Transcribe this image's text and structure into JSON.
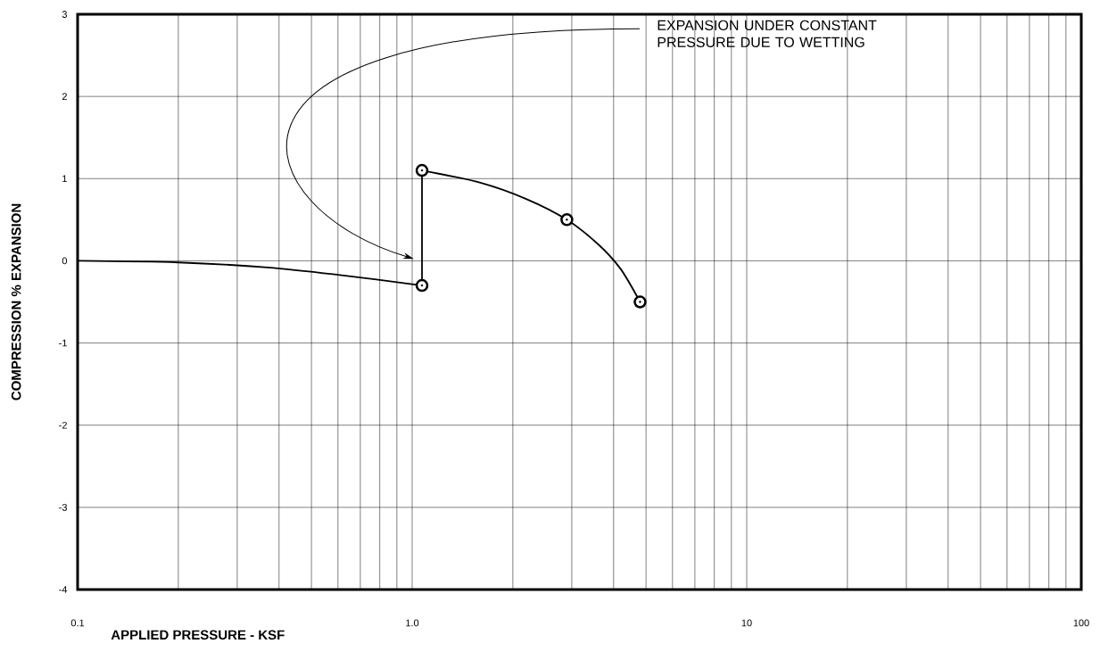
{
  "chart_data": {
    "type": "line",
    "xlabel": "APPLIED PRESSURE - KSF",
    "ylabel": "COMPRESSION % EXPANSION",
    "log": "x",
    "grid": true,
    "xlim": [
      0.1,
      100
    ],
    "ylim": [
      -4,
      3
    ],
    "xticks": [
      {
        "value": 0.1,
        "label": "0.1"
      },
      {
        "value": 1,
        "label": "1.0"
      },
      10,
      100
    ],
    "yticks": [
      -4,
      -3,
      -2,
      -1,
      0,
      1,
      2,
      3
    ],
    "series": [
      {
        "color": "#000000",
        "x": [
          0.1,
          0.2,
          0.37,
          0.6,
          1.07
        ],
        "values": [
          0,
          -0.02,
          -0.08,
          -0.17,
          -0.3
        ]
      },
      {
        "color": "#000000",
        "x": [
          1.07,
          1.07
        ],
        "values": [
          -0.3,
          1.1
        ]
      },
      {
        "color": "#000000",
        "x": [
          1.07,
          1.6,
          2.2,
          2.9,
          3.6,
          4.2,
          4.8
        ],
        "values": [
          1.1,
          0.95,
          0.75,
          0.5,
          0.2,
          -0.1,
          -0.5
        ]
      },
      {
        "type": "scatter",
        "color": "#000000",
        "marker": "circle",
        "x": [
          1.07,
          1.07,
          2.9,
          4.8
        ],
        "values": [
          -0.3,
          1.1,
          0.5,
          -0.5
        ]
      }
    ],
    "annotations": [
      "EXPANSION UNDER CONSTANT PRESSURE DUE TO WETTING"
    ]
  }
}
